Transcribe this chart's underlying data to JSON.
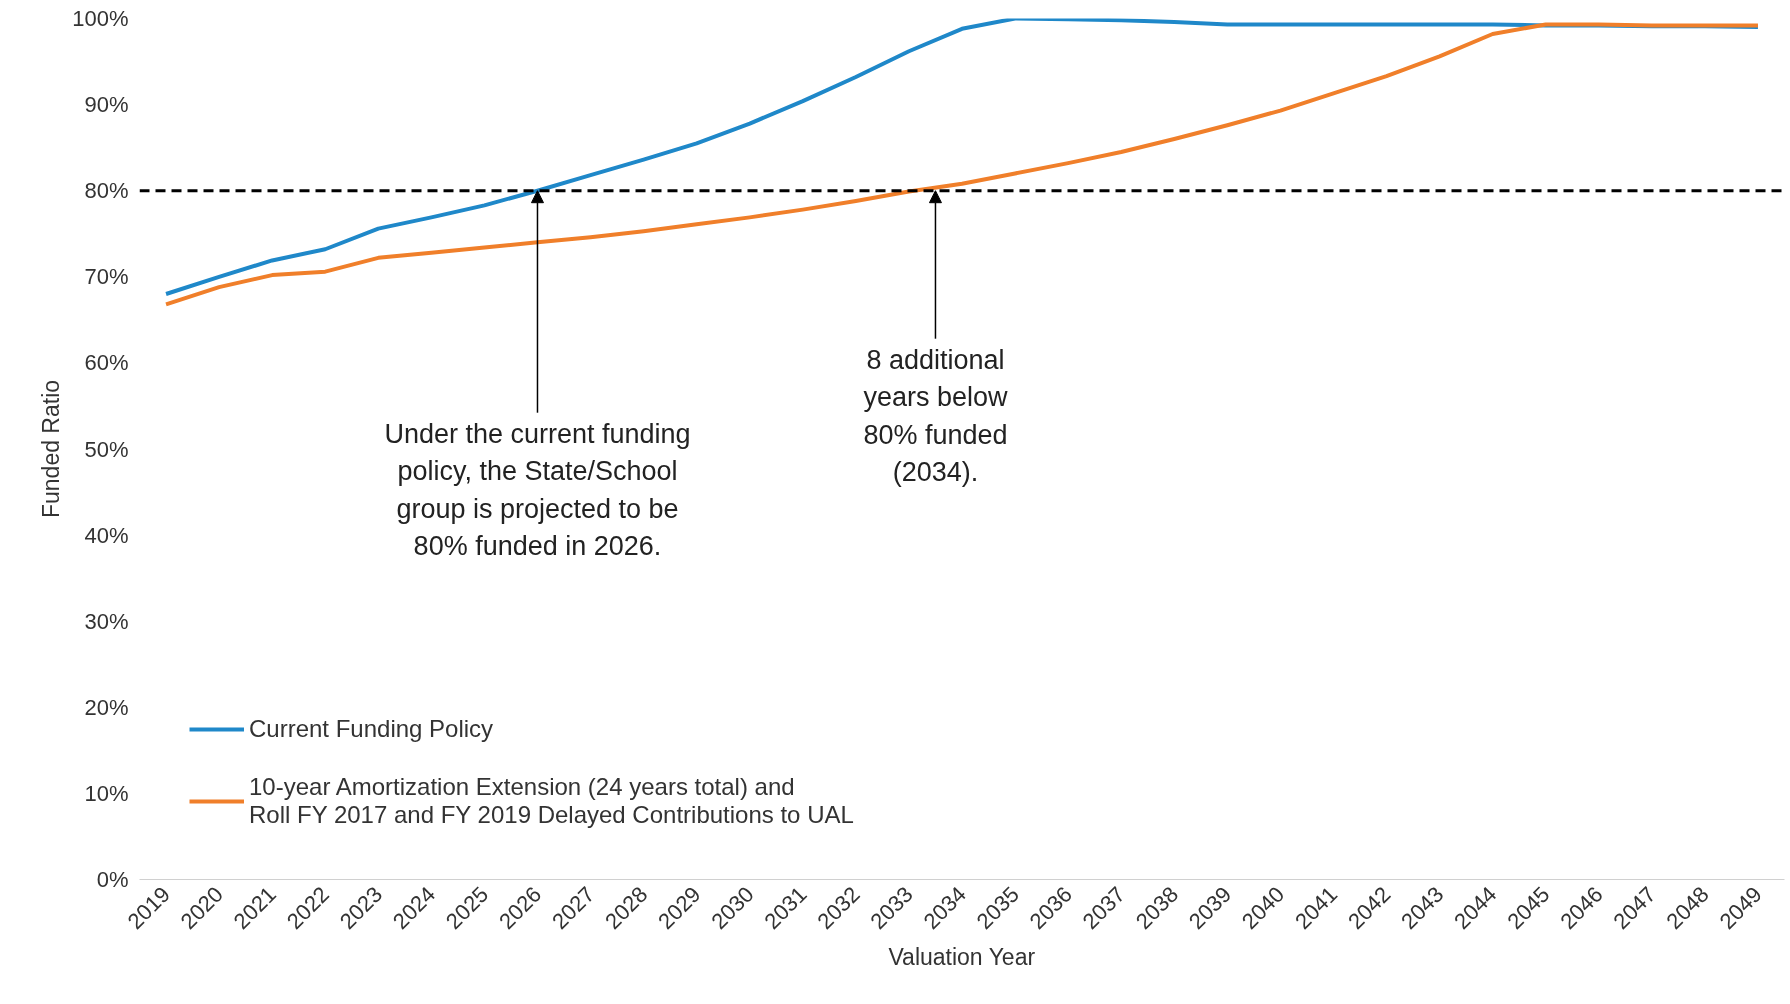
{
  "chart_data": {
    "type": "line",
    "xlabel": "Valuation Year",
    "ylabel": "Funded Ratio",
    "x": [
      2019,
      2020,
      2021,
      2022,
      2023,
      2024,
      2025,
      2026,
      2027,
      2028,
      2029,
      2030,
      2031,
      2032,
      2033,
      2034,
      2035,
      2036,
      2037,
      2038,
      2039,
      2040,
      2041,
      2042,
      2043,
      2044,
      2045,
      2046,
      2047,
      2048,
      2049
    ],
    "series": [
      {
        "name": "Current Funding Policy",
        "color": "#1f88c9",
        "values": [
          68.0,
          70.0,
          71.9,
          73.2,
          75.6,
          76.9,
          78.3,
          80.0,
          81.8,
          83.6,
          85.5,
          87.8,
          90.4,
          93.2,
          96.2,
          98.8,
          100.0,
          99.9,
          99.8,
          99.6,
          99.3,
          99.3,
          99.3,
          99.3,
          99.3,
          99.3,
          99.2,
          99.2,
          99.1,
          99.1,
          99.0
        ]
      },
      {
        "name": "10-year Amortization Extension (24 years total) and Roll FY 2017 and FY 2019 Delayed Contributions to UAL",
        "color": "#f07f2a",
        "values": [
          66.8,
          68.8,
          70.2,
          70.6,
          72.2,
          72.8,
          73.4,
          74.0,
          74.6,
          75.3,
          76.1,
          76.9,
          77.8,
          78.8,
          79.9,
          80.8,
          82.0,
          83.2,
          84.5,
          86.0,
          87.6,
          89.3,
          91.3,
          93.3,
          95.6,
          98.2,
          99.3,
          99.3,
          99.2,
          99.2,
          99.2
        ]
      }
    ],
    "xlim": [
      2018.5,
      2049.5
    ],
    "xticks": [
      2019,
      2020,
      2021,
      2022,
      2023,
      2024,
      2025,
      2026,
      2027,
      2028,
      2029,
      2030,
      2031,
      2032,
      2033,
      2034,
      2035,
      2036,
      2037,
      2038,
      2039,
      2040,
      2041,
      2042,
      2043,
      2044,
      2045,
      2046,
      2047,
      2048,
      2049
    ],
    "ylim": [
      0,
      100
    ],
    "yticks": [
      {
        "value": 0,
        "label": "0%"
      },
      {
        "value": 10,
        "label": "10%"
      },
      {
        "value": 20,
        "label": "20%"
      },
      {
        "value": 30,
        "label": "30%"
      },
      {
        "value": 40,
        "label": "40%"
      },
      {
        "value": 50,
        "label": "50%"
      },
      {
        "value": 60,
        "label": "60%"
      },
      {
        "value": 70,
        "label": "70%"
      },
      {
        "value": 80,
        "label": "80%"
      },
      {
        "value": 90,
        "label": "90%"
      },
      {
        "value": 100,
        "label": "100%"
      }
    ],
    "ref_lines": [
      {
        "axis": "y",
        "value": 80,
        "color": "#000000",
        "line_style": "dashed"
      }
    ],
    "annotations": [
      {
        "text": "Under the current funding policy, the State/School group is projected to be 80% funded in 2026.",
        "x": 2026,
        "y": 80
      },
      {
        "text": "8 additional years below 80% funded (2034).",
        "x": 2033.5,
        "y": 80
      }
    ],
    "grid": false,
    "legend": "bottom left",
    "marker": "none",
    "line_style": "solid"
  }
}
